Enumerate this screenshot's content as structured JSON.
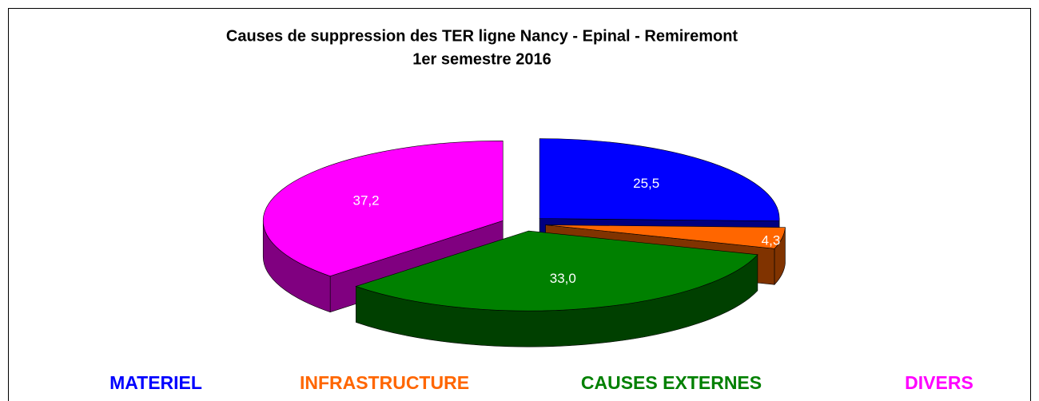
{
  "chart_data": {
    "type": "pie3d",
    "title": "Causes de suppression des TER ligne Nancy - Epinal - Remiremont",
    "subtitle": "1er semestre 2016",
    "categories": [
      "MATERIEL",
      "INFRASTRUCTURE",
      "CAUSES EXTERNES",
      "DIVERS"
    ],
    "values": [
      25.5,
      4.3,
      33.0,
      37.2
    ],
    "value_labels": [
      "25,5",
      "4,3",
      "33,0",
      "37,2"
    ],
    "colors": [
      "#0000ff",
      "#ff6600",
      "#008000",
      "#ff00ff"
    ],
    "legend": "bottom"
  }
}
